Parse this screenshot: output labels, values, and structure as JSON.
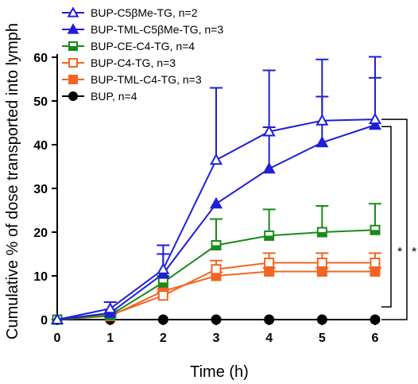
{
  "chart_data": {
    "type": "line",
    "title": "",
    "xlabel": "Time (h)",
    "ylabel": "Cumulative % of dose transported into lymph",
    "xlim": [
      0,
      6
    ],
    "ylim": [
      0,
      60
    ],
    "xticks": [
      0,
      1,
      2,
      3,
      4,
      5,
      6
    ],
    "yticks": [
      0,
      10,
      20,
      30,
      40,
      50,
      60
    ],
    "grid": false,
    "legend_position": "top-left",
    "x": [
      0,
      1,
      2,
      3,
      4,
      5,
      6
    ],
    "series": [
      {
        "name": "BUP-C5βMe-TG, n=2",
        "color": "#1f1fd6",
        "marker": "triangle-open",
        "values": [
          0,
          2.5,
          11.5,
          36.5,
          43,
          45.5,
          45.8
        ],
        "error": [
          0,
          1.5,
          5.5,
          16.5,
          14,
          14,
          14.3
        ]
      },
      {
        "name": "BUP-TML-C5βMe-TG, n=3",
        "color": "#1f1fd6",
        "marker": "triangle-filled",
        "values": [
          0,
          1.5,
          10.5,
          26.5,
          34.5,
          40.5,
          44.5
        ],
        "error": [
          0,
          0.8,
          4.5,
          0,
          9.5,
          10.5,
          10.8
        ]
      },
      {
        "name": "BUP-CE-C4-TG, n=4",
        "color": "#1a8a1a",
        "marker": "square-half",
        "values": [
          0,
          1,
          8.5,
          17,
          19.2,
          20,
          20.5
        ],
        "error": [
          0,
          0.3,
          1.5,
          6,
          6,
          6,
          6
        ]
      },
      {
        "name": "BUP-C4-TG, n=3",
        "color": "#f26522",
        "marker": "square-open",
        "values": [
          0,
          1,
          5.5,
          11.5,
          13,
          13,
          13
        ],
        "error": [
          0,
          0.3,
          0.8,
          2,
          2.2,
          2.2,
          2.2
        ]
      },
      {
        "name": "BUP-TML-C4-TG, n=3",
        "color": "#f26522",
        "marker": "square-filled",
        "values": [
          0,
          0.8,
          6.5,
          10,
          11,
          11,
          11
        ],
        "error": [
          0,
          0.2,
          0.5,
          0.8,
          0.8,
          0.8,
          0.8
        ]
      },
      {
        "name": "BUP, n=4",
        "color": "#000000",
        "marker": "circle-filled",
        "values": [
          0,
          0,
          0,
          0,
          0,
          0,
          0
        ],
        "error": [
          0,
          0,
          0,
          0,
          0,
          0,
          0
        ]
      }
    ],
    "annotations": [
      {
        "text": "*",
        "brackets": "outer"
      },
      {
        "text": "*",
        "brackets": "inner"
      }
    ]
  }
}
